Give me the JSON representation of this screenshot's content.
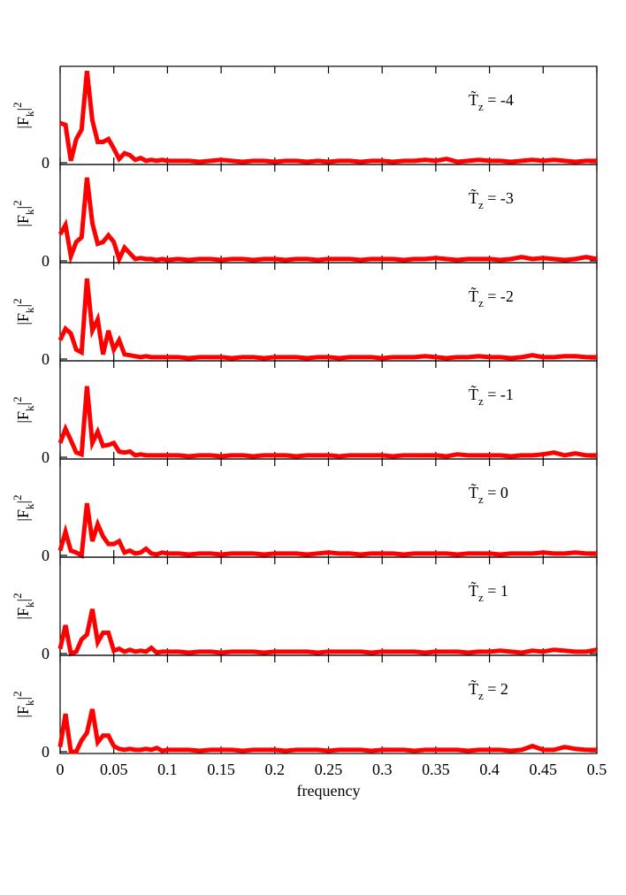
{
  "chart_data": [
    {
      "type": "line",
      "annotation": {
        "main": "T̃",
        "sub": "z",
        "rest": " = -4"
      },
      "ylabel": {
        "main": "|F",
        "sub": "k",
        "close": "|",
        "sup": "2"
      },
      "x": [
        0,
        0.005,
        0.01,
        0.015,
        0.02,
        0.025,
        0.03,
        0.035,
        0.04,
        0.045,
        0.05,
        0.055,
        0.06,
        0.065,
        0.07,
        0.075,
        0.08,
        0.085,
        0.09,
        0.095,
        0.1,
        0.11,
        0.12,
        0.13,
        0.14,
        0.15,
        0.16,
        0.17,
        0.18,
        0.19,
        0.2,
        0.21,
        0.22,
        0.23,
        0.24,
        0.25,
        0.26,
        0.27,
        0.28,
        0.29,
        0.3,
        0.31,
        0.32,
        0.33,
        0.34,
        0.35,
        0.36,
        0.37,
        0.38,
        0.39,
        0.4,
        0.41,
        0.42,
        0.43,
        0.44,
        0.45,
        0.46,
        0.47,
        0.48,
        0.49,
        0.5
      ],
      "series": [
        {
          "color": "#ff0000",
          "values": [
            0.42,
            0.4,
            0.02,
            0.25,
            0.35,
            0.97,
            0.45,
            0.22,
            0.22,
            0.25,
            0.15,
            0.04,
            0.1,
            0.08,
            0.03,
            0.05,
            0.02,
            0.03,
            0.02,
            0.03,
            0.02,
            0.02,
            0.02,
            0.01,
            0.02,
            0.03,
            0.02,
            0.01,
            0.02,
            0.02,
            0.01,
            0.02,
            0.02,
            0.01,
            0.02,
            0.01,
            0.02,
            0.02,
            0.01,
            0.02,
            0.02,
            0.01,
            0.02,
            0.02,
            0.03,
            0.02,
            0.04,
            0.01,
            0.02,
            0.03,
            0.02,
            0.02,
            0.01,
            0.02,
            0.03,
            0.02,
            0.03,
            0.02,
            0.01,
            0.02,
            0.02
          ]
        }
      ],
      "xlim": [
        0,
        0.5
      ],
      "xticks": [
        0,
        0.05,
        0.1,
        0.15,
        0.2,
        0.25,
        0.3,
        0.35,
        0.4,
        0.45,
        0.5
      ],
      "ylim": [
        0,
        1
      ],
      "yticks": [
        0
      ]
    },
    {
      "type": "line",
      "annotation": {
        "main": "T̃",
        "sub": "z",
        "rest": " = -3"
      },
      "ylabel": {
        "main": "|F",
        "sub": "k",
        "close": "|",
        "sup": "2"
      },
      "x": [
        0,
        0.005,
        0.01,
        0.015,
        0.02,
        0.025,
        0.03,
        0.035,
        0.04,
        0.045,
        0.05,
        0.055,
        0.06,
        0.065,
        0.07,
        0.075,
        0.08,
        0.085,
        0.09,
        0.095,
        0.1,
        0.11,
        0.12,
        0.13,
        0.14,
        0.15,
        0.16,
        0.17,
        0.18,
        0.19,
        0.2,
        0.21,
        0.22,
        0.23,
        0.24,
        0.25,
        0.26,
        0.27,
        0.28,
        0.29,
        0.3,
        0.31,
        0.32,
        0.33,
        0.34,
        0.35,
        0.36,
        0.37,
        0.38,
        0.39,
        0.4,
        0.41,
        0.42,
        0.43,
        0.44,
        0.45,
        0.46,
        0.47,
        0.48,
        0.49,
        0.5
      ],
      "series": [
        {
          "color": "#ff0000",
          "values": [
            0.28,
            0.38,
            0.05,
            0.2,
            0.25,
            0.88,
            0.4,
            0.18,
            0.2,
            0.27,
            0.2,
            0.02,
            0.14,
            0.08,
            0.02,
            0.03,
            0.02,
            0.02,
            0.01,
            0.02,
            0.01,
            0.02,
            0.01,
            0.02,
            0.02,
            0.01,
            0.02,
            0.02,
            0.01,
            0.02,
            0.02,
            0.01,
            0.02,
            0.02,
            0.01,
            0.02,
            0.02,
            0.02,
            0.01,
            0.02,
            0.02,
            0.02,
            0.01,
            0.02,
            0.02,
            0.03,
            0.02,
            0.01,
            0.02,
            0.02,
            0.02,
            0.01,
            0.02,
            0.04,
            0.02,
            0.03,
            0.02,
            0.01,
            0.02,
            0.04,
            0.02
          ]
        }
      ],
      "xlim": [
        0,
        0.5
      ],
      "xticks": [
        0,
        0.05,
        0.1,
        0.15,
        0.2,
        0.25,
        0.3,
        0.35,
        0.4,
        0.45,
        0.5
      ],
      "ylim": [
        0,
        1
      ],
      "yticks": [
        0
      ]
    },
    {
      "type": "line",
      "annotation": {
        "main": "T̃",
        "sub": "z",
        "rest": " = -2"
      },
      "ylabel": {
        "main": "|F",
        "sub": "k",
        "close": "|",
        "sup": "2"
      },
      "x": [
        0,
        0.005,
        0.01,
        0.015,
        0.02,
        0.025,
        0.03,
        0.035,
        0.04,
        0.045,
        0.05,
        0.055,
        0.06,
        0.065,
        0.07,
        0.075,
        0.08,
        0.085,
        0.09,
        0.095,
        0.1,
        0.11,
        0.12,
        0.13,
        0.14,
        0.15,
        0.16,
        0.17,
        0.18,
        0.19,
        0.2,
        0.21,
        0.22,
        0.23,
        0.24,
        0.25,
        0.26,
        0.27,
        0.28,
        0.29,
        0.3,
        0.31,
        0.32,
        0.33,
        0.34,
        0.35,
        0.36,
        0.37,
        0.38,
        0.39,
        0.4,
        0.41,
        0.42,
        0.43,
        0.44,
        0.45,
        0.46,
        0.47,
        0.48,
        0.49,
        0.5
      ],
      "series": [
        {
          "color": "#ff0000",
          "values": [
            0.2,
            0.32,
            0.27,
            0.1,
            0.07,
            0.85,
            0.3,
            0.42,
            0.05,
            0.3,
            0.1,
            0.2,
            0.05,
            0.04,
            0.03,
            0.02,
            0.03,
            0.02,
            0.02,
            0.02,
            0.02,
            0.02,
            0.01,
            0.02,
            0.02,
            0.02,
            0.01,
            0.02,
            0.02,
            0.01,
            0.02,
            0.02,
            0.02,
            0.01,
            0.02,
            0.02,
            0.01,
            0.02,
            0.02,
            0.02,
            0.01,
            0.02,
            0.02,
            0.02,
            0.03,
            0.02,
            0.01,
            0.02,
            0.02,
            0.03,
            0.02,
            0.02,
            0.01,
            0.02,
            0.04,
            0.02,
            0.02,
            0.03,
            0.03,
            0.02,
            0.02
          ]
        }
      ],
      "xlim": [
        0,
        0.5
      ],
      "xticks": [
        0,
        0.05,
        0.1,
        0.15,
        0.2,
        0.25,
        0.3,
        0.35,
        0.4,
        0.45,
        0.5
      ],
      "ylim": [
        0,
        1
      ],
      "yticks": [
        0
      ]
    },
    {
      "type": "line",
      "annotation": {
        "main": "T̃",
        "sub": "z",
        "rest": " = -1"
      },
      "ylabel": {
        "main": "|F",
        "sub": "k",
        "close": "|",
        "sup": "2"
      },
      "x": [
        0,
        0.005,
        0.01,
        0.015,
        0.02,
        0.025,
        0.03,
        0.035,
        0.04,
        0.045,
        0.05,
        0.055,
        0.06,
        0.065,
        0.07,
        0.075,
        0.08,
        0.085,
        0.09,
        0.095,
        0.1,
        0.11,
        0.12,
        0.13,
        0.14,
        0.15,
        0.16,
        0.17,
        0.18,
        0.19,
        0.2,
        0.21,
        0.22,
        0.23,
        0.24,
        0.25,
        0.26,
        0.27,
        0.28,
        0.29,
        0.3,
        0.31,
        0.32,
        0.33,
        0.34,
        0.35,
        0.36,
        0.37,
        0.38,
        0.39,
        0.4,
        0.41,
        0.42,
        0.43,
        0.44,
        0.45,
        0.46,
        0.47,
        0.48,
        0.49,
        0.5
      ],
      "series": [
        {
          "color": "#ff0000",
          "values": [
            0.15,
            0.3,
            0.18,
            0.05,
            0.03,
            0.75,
            0.15,
            0.27,
            0.12,
            0.13,
            0.15,
            0.06,
            0.05,
            0.06,
            0.02,
            0.03,
            0.02,
            0.02,
            0.02,
            0.02,
            0.02,
            0.02,
            0.01,
            0.02,
            0.02,
            0.01,
            0.02,
            0.02,
            0.01,
            0.02,
            0.02,
            0.02,
            0.01,
            0.02,
            0.02,
            0.02,
            0.01,
            0.02,
            0.02,
            0.02,
            0.02,
            0.01,
            0.02,
            0.02,
            0.02,
            0.02,
            0.01,
            0.03,
            0.02,
            0.02,
            0.02,
            0.02,
            0.01,
            0.02,
            0.02,
            0.03,
            0.05,
            0.02,
            0.04,
            0.02,
            0.02
          ]
        }
      ],
      "xlim": [
        0,
        0.5
      ],
      "xticks": [
        0,
        0.05,
        0.1,
        0.15,
        0.2,
        0.25,
        0.3,
        0.35,
        0.4,
        0.45,
        0.5
      ],
      "ylim": [
        0,
        1
      ],
      "yticks": [
        0
      ]
    },
    {
      "type": "line",
      "annotation": {
        "main": "T̃",
        "sub": "z",
        "rest": " = 0"
      },
      "ylabel": {
        "main": "|F",
        "sub": "k",
        "close": "|",
        "sup": "2"
      },
      "x": [
        0,
        0.005,
        0.01,
        0.015,
        0.02,
        0.025,
        0.03,
        0.035,
        0.04,
        0.045,
        0.05,
        0.055,
        0.06,
        0.065,
        0.07,
        0.075,
        0.08,
        0.085,
        0.09,
        0.095,
        0.1,
        0.11,
        0.12,
        0.13,
        0.14,
        0.15,
        0.16,
        0.17,
        0.18,
        0.19,
        0.2,
        0.21,
        0.22,
        0.23,
        0.24,
        0.25,
        0.26,
        0.27,
        0.28,
        0.29,
        0.3,
        0.31,
        0.32,
        0.33,
        0.34,
        0.35,
        0.36,
        0.37,
        0.38,
        0.39,
        0.4,
        0.41,
        0.42,
        0.43,
        0.44,
        0.45,
        0.46,
        0.47,
        0.48,
        0.49,
        0.5
      ],
      "series": [
        {
          "color": "#ff0000",
          "values": [
            0.05,
            0.25,
            0.05,
            0.03,
            0,
            0.55,
            0.15,
            0.33,
            0.2,
            0.12,
            0.12,
            0.15,
            0.03,
            0.05,
            0.02,
            0.03,
            0.07,
            0.02,
            0.01,
            0.03,
            0.02,
            0.02,
            0.01,
            0.02,
            0.02,
            0.01,
            0.02,
            0.02,
            0.02,
            0.01,
            0.02,
            0.02,
            0.02,
            0.01,
            0.02,
            0.03,
            0.02,
            0.02,
            0.01,
            0.02,
            0.02,
            0.02,
            0.01,
            0.02,
            0.02,
            0.02,
            0.02,
            0.01,
            0.02,
            0.02,
            0.02,
            0.01,
            0.02,
            0.02,
            0.02,
            0.03,
            0.02,
            0.02,
            0.03,
            0.02,
            0.02
          ]
        }
      ],
      "xlim": [
        0,
        0.5
      ],
      "xticks": [
        0,
        0.05,
        0.1,
        0.15,
        0.2,
        0.25,
        0.3,
        0.35,
        0.4,
        0.45,
        0.5
      ],
      "ylim": [
        0,
        1
      ],
      "yticks": [
        0
      ]
    },
    {
      "type": "line",
      "annotation": {
        "main": "T̃",
        "sub": "z",
        "rest": " = 1"
      },
      "ylabel": {
        "main": "|F",
        "sub": "k",
        "close": "|",
        "sup": "2"
      },
      "x": [
        0,
        0.005,
        0.01,
        0.015,
        0.02,
        0.025,
        0.03,
        0.035,
        0.04,
        0.045,
        0.05,
        0.055,
        0.06,
        0.065,
        0.07,
        0.075,
        0.08,
        0.085,
        0.09,
        0.095,
        0.1,
        0.11,
        0.12,
        0.13,
        0.14,
        0.15,
        0.16,
        0.17,
        0.18,
        0.19,
        0.2,
        0.21,
        0.22,
        0.23,
        0.24,
        0.25,
        0.26,
        0.27,
        0.28,
        0.29,
        0.3,
        0.31,
        0.32,
        0.33,
        0.34,
        0.35,
        0.36,
        0.37,
        0.38,
        0.39,
        0.4,
        0.41,
        0.42,
        0.43,
        0.44,
        0.45,
        0.46,
        0.47,
        0.48,
        0.49,
        0.5
      ],
      "series": [
        {
          "color": "#ff0000",
          "values": [
            0.05,
            0.3,
            0,
            0.02,
            0.15,
            0.2,
            0.47,
            0.12,
            0.22,
            0.22,
            0.03,
            0.05,
            0.02,
            0.04,
            0.02,
            0.03,
            0.02,
            0.06,
            0.01,
            0.02,
            0.02,
            0.02,
            0.01,
            0.02,
            0.02,
            0.01,
            0.02,
            0.02,
            0.02,
            0.01,
            0.02,
            0.02,
            0.02,
            0.02,
            0.01,
            0.02,
            0.02,
            0.02,
            0.02,
            0.01,
            0.02,
            0.02,
            0.02,
            0.02,
            0.01,
            0.02,
            0.02,
            0.02,
            0.01,
            0.02,
            0.02,
            0.03,
            0.02,
            0.01,
            0.03,
            0.02,
            0.04,
            0.03,
            0.02,
            0.02,
            0.04
          ]
        }
      ],
      "xlim": [
        0,
        0.5
      ],
      "xticks": [
        0,
        0.05,
        0.1,
        0.15,
        0.2,
        0.25,
        0.3,
        0.35,
        0.4,
        0.45,
        0.5
      ],
      "ylim": [
        0,
        1
      ],
      "yticks": [
        0
      ]
    },
    {
      "type": "line",
      "annotation": {
        "main": "T̃",
        "sub": "z",
        "rest": " = 2"
      },
      "ylabel": {
        "main": "|F",
        "sub": "k",
        "close": "|",
        "sup": "2"
      },
      "xlabel": "frequency",
      "x": [
        0,
        0.005,
        0.01,
        0.015,
        0.02,
        0.025,
        0.03,
        0.035,
        0.04,
        0.045,
        0.05,
        0.055,
        0.06,
        0.065,
        0.07,
        0.075,
        0.08,
        0.085,
        0.09,
        0.095,
        0.1,
        0.11,
        0.12,
        0.13,
        0.14,
        0.15,
        0.16,
        0.17,
        0.18,
        0.19,
        0.2,
        0.21,
        0.22,
        0.23,
        0.24,
        0.25,
        0.26,
        0.27,
        0.28,
        0.29,
        0.3,
        0.31,
        0.32,
        0.33,
        0.34,
        0.35,
        0.36,
        0.37,
        0.38,
        0.39,
        0.4,
        0.41,
        0.42,
        0.43,
        0.44,
        0.45,
        0.46,
        0.47,
        0.48,
        0.49,
        0.5
      ],
      "series": [
        {
          "color": "#ff0000",
          "values": [
            0.05,
            0.4,
            0,
            0,
            0.12,
            0.2,
            0.45,
            0.1,
            0.17,
            0.17,
            0.06,
            0.03,
            0.02,
            0.03,
            0.02,
            0.02,
            0.03,
            0.02,
            0.04,
            0.01,
            0.02,
            0.02,
            0.02,
            0.01,
            0.02,
            0.02,
            0.02,
            0.01,
            0.02,
            0.02,
            0.02,
            0.01,
            0.02,
            0.02,
            0.02,
            0.01,
            0.02,
            0.02,
            0.02,
            0.01,
            0.02,
            0.02,
            0.02,
            0.01,
            0.02,
            0.02,
            0.02,
            0.02,
            0.01,
            0.02,
            0.02,
            0.02,
            0.01,
            0.02,
            0.06,
            0.02,
            0.02,
            0.05,
            0.03,
            0.02,
            0.02
          ]
        }
      ],
      "xlim": [
        0,
        0.5
      ],
      "xticks": [
        0,
        0.05,
        0.1,
        0.15,
        0.2,
        0.25,
        0.3,
        0.35,
        0.4,
        0.45,
        0.5
      ],
      "ylim": [
        0,
        1
      ],
      "yticks": [
        0
      ]
    }
  ]
}
